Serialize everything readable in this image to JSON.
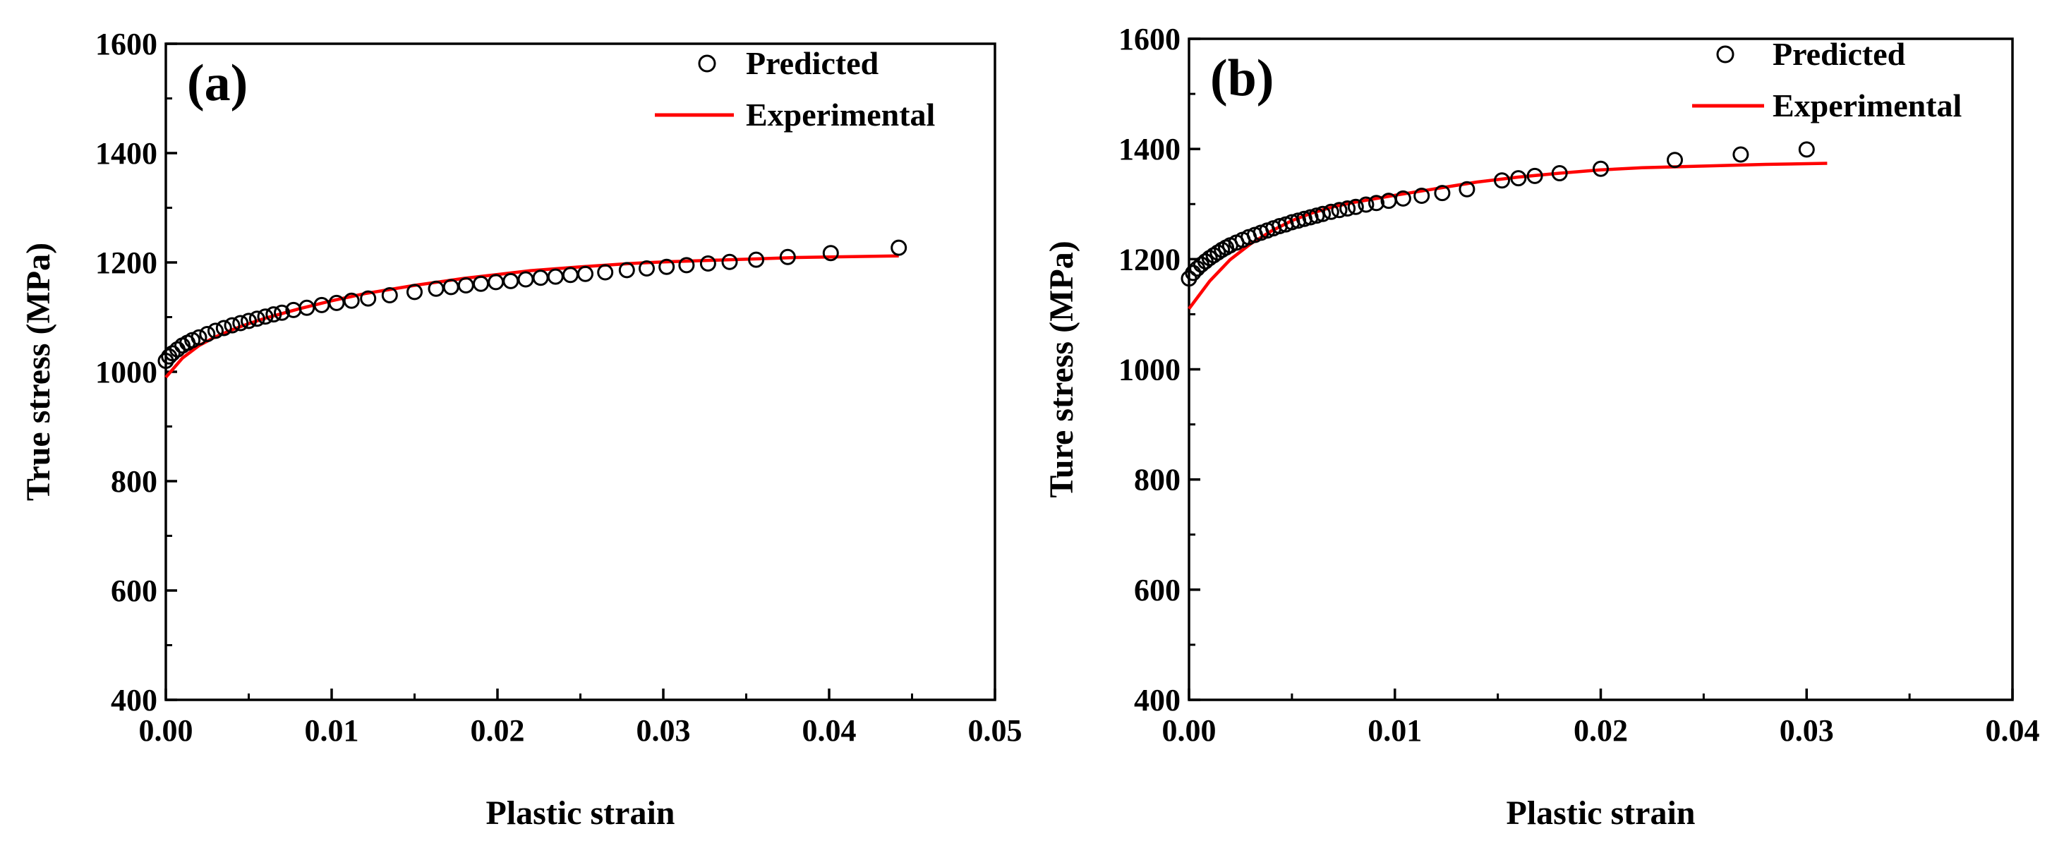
{
  "chart_data": [
    {
      "type": "line",
      "panel_label": "(a)",
      "xlabel": "Plastic strain",
      "ylabel": "True stress (MPa)",
      "xlim": [
        0,
        0.05
      ],
      "ylim": [
        400,
        1600
      ],
      "x_ticks": [
        "0.00",
        "0.01",
        "0.02",
        "0.03",
        "0.04",
        "0.05"
      ],
      "y_ticks": [
        "400",
        "600",
        "800",
        "1000",
        "1200",
        "1400",
        "1600"
      ],
      "legend_position": "top-right",
      "series": [
        {
          "name": "Predicted",
          "style": "open-circle",
          "color": "#000000",
          "x": [
            0.0,
            0.0002,
            0.0004,
            0.0007,
            0.001,
            0.0013,
            0.0016,
            0.002,
            0.0025,
            0.003,
            0.0035,
            0.004,
            0.0045,
            0.005,
            0.0055,
            0.006,
            0.0065,
            0.007,
            0.0077,
            0.0085,
            0.0094,
            0.0103,
            0.0112,
            0.0122,
            0.0135,
            0.015,
            0.0163,
            0.0172,
            0.0181,
            0.019,
            0.0199,
            0.0208,
            0.0217,
            0.0226,
            0.0235,
            0.0244,
            0.0253,
            0.0265,
            0.0278,
            0.029,
            0.0302,
            0.0314,
            0.0327,
            0.034,
            0.0356,
            0.0375,
            0.0401,
            0.0442
          ],
          "y": [
            1020,
            1028,
            1034,
            1041,
            1048,
            1053,
            1058,
            1063,
            1069,
            1075,
            1080,
            1085,
            1089,
            1093,
            1097,
            1101,
            1105,
            1108,
            1113,
            1117,
            1122,
            1126,
            1130,
            1134,
            1140,
            1146,
            1152,
            1155,
            1158,
            1161,
            1164,
            1166,
            1169,
            1172,
            1174,
            1177,
            1179,
            1182,
            1186,
            1189,
            1192,
            1195,
            1198,
            1201,
            1205,
            1210,
            1217,
            1227
          ]
        },
        {
          "name": "Experimental",
          "style": "line",
          "color": "#ff0000",
          "x": [
            0.0,
            0.001,
            0.002,
            0.003,
            0.004,
            0.005,
            0.006,
            0.008,
            0.01,
            0.012,
            0.015,
            0.018,
            0.02,
            0.022,
            0.025,
            0.028,
            0.03,
            0.033,
            0.036,
            0.038,
            0.04,
            0.0442
          ],
          "y": [
            990,
            1025,
            1048,
            1064,
            1077,
            1088,
            1098,
            1115,
            1130,
            1143,
            1158,
            1171,
            1178,
            1185,
            1192,
            1198,
            1201,
            1204,
            1207,
            1209,
            1210,
            1212
          ]
        }
      ]
    },
    {
      "type": "line",
      "panel_label": "(b)",
      "xlabel": "Plastic strain",
      "ylabel": "Ture stress (MPa)",
      "xlim": [
        0,
        0.04
      ],
      "ylim": [
        400,
        1600
      ],
      "x_ticks": [
        "0.00",
        "0.01",
        "0.02",
        "0.03",
        "0.04"
      ],
      "y_ticks": [
        "400",
        "600",
        "800",
        "1000",
        "1200",
        "1400",
        "1600"
      ],
      "legend_position": "top-right",
      "series": [
        {
          "name": "Predicted",
          "style": "open-circle",
          "color": "#000000",
          "x": [
            0.0,
            0.0002,
            0.0004,
            0.0006,
            0.0008,
            0.001,
            0.0012,
            0.0014,
            0.0016,
            0.0018,
            0.002,
            0.0023,
            0.0026,
            0.0029,
            0.0032,
            0.0035,
            0.0038,
            0.0041,
            0.0044,
            0.0047,
            0.005,
            0.0053,
            0.0056,
            0.0059,
            0.0062,
            0.0065,
            0.0069,
            0.0073,
            0.0077,
            0.0081,
            0.0086,
            0.0091,
            0.0097,
            0.0104,
            0.0113,
            0.0123,
            0.0135,
            0.0152,
            0.016,
            0.0168,
            0.018,
            0.02,
            0.0236,
            0.0268,
            0.03
          ],
          "y": [
            1165,
            1175,
            1183,
            1190,
            1196,
            1202,
            1207,
            1212,
            1217,
            1221,
            1225,
            1230,
            1235,
            1240,
            1244,
            1248,
            1252,
            1256,
            1260,
            1263,
            1267,
            1270,
            1273,
            1276,
            1279,
            1282,
            1286,
            1289,
            1292,
            1295,
            1299,
            1302,
            1306,
            1310,
            1315,
            1320,
            1327,
            1343,
            1347,
            1351,
            1356,
            1364,
            1380,
            1390,
            1399
          ]
        },
        {
          "name": "Experimental",
          "style": "line",
          "color": "#ff0000",
          "x": [
            0.0,
            0.001,
            0.002,
            0.003,
            0.004,
            0.005,
            0.006,
            0.007,
            0.008,
            0.01,
            0.012,
            0.014,
            0.016,
            0.018,
            0.02,
            0.022,
            0.025,
            0.028,
            0.031
          ],
          "y": [
            1110,
            1160,
            1199,
            1228,
            1251,
            1270,
            1284,
            1295,
            1303,
            1316,
            1328,
            1340,
            1349,
            1356,
            1362,
            1366,
            1369,
            1372,
            1374
          ]
        }
      ]
    }
  ]
}
